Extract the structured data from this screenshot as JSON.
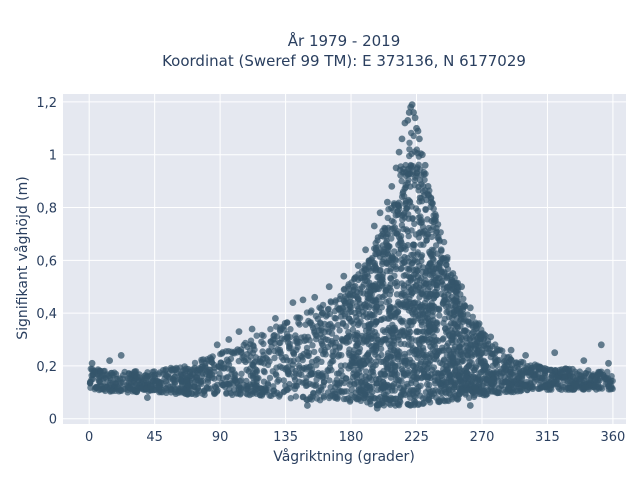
{
  "chart_data": {
    "type": "scatter",
    "title": "År 1979 - 2019",
    "subtitle": "Koordinat (Sweref 99 TM): E 373136, N 6177029",
    "xlabel": "Vågriktning (grader)",
    "ylabel": "Signifikant våghöjd (m)",
    "xlim": [
      -18,
      369
    ],
    "ylim": [
      -0.02,
      1.23
    ],
    "x_ticks": [
      0,
      45,
      90,
      135,
      180,
      225,
      270,
      315,
      360
    ],
    "x_tick_labels": [
      "0",
      "45",
      "90",
      "135",
      "180",
      "225",
      "270",
      "315",
      "360"
    ],
    "y_ticks": [
      0,
      0.2,
      0.4,
      0.6,
      0.8,
      1.0,
      1.2
    ],
    "y_tick_labels": [
      "0",
      "0,2",
      "0,4",
      "0,6",
      "0,8",
      "1",
      "1,2"
    ],
    "grid": true,
    "legend": "none",
    "background": "#e5e8f0",
    "marker_color": "#34566b",
    "series": [
      {
        "name": "",
        "envelope": {
          "x": [
            0,
            20,
            45,
            70,
            90,
            110,
            130,
            150,
            170,
            185,
            195,
            205,
            212,
            218,
            222,
            226,
            232,
            240,
            250,
            262,
            275,
            290,
            310,
            330,
            350,
            360
          ],
          "upper": [
            0.19,
            0.18,
            0.18,
            0.21,
            0.25,
            0.3,
            0.36,
            0.41,
            0.46,
            0.55,
            0.64,
            0.78,
            0.92,
            1.02,
            1.1,
            1.05,
            0.92,
            0.74,
            0.56,
            0.4,
            0.3,
            0.23,
            0.2,
            0.19,
            0.18,
            0.18
          ],
          "lower": [
            0.11,
            0.1,
            0.1,
            0.09,
            0.09,
            0.09,
            0.08,
            0.07,
            0.07,
            0.06,
            0.05,
            0.05,
            0.05,
            0.05,
            0.05,
            0.05,
            0.06,
            0.06,
            0.07,
            0.08,
            0.09,
            0.1,
            0.11,
            0.11,
            0.11,
            0.11
          ]
        },
        "points": [
          [
            22,
            0.24
          ],
          [
            103,
            0.33
          ],
          [
            128,
            0.38
          ],
          [
            155,
            0.46
          ],
          [
            175,
            0.54
          ],
          [
            185,
            0.58
          ],
          [
            190,
            0.64
          ],
          [
            196,
            0.73
          ],
          [
            200,
            0.78
          ],
          [
            205,
            0.82
          ],
          [
            208,
            0.88
          ],
          [
            211,
            0.95
          ],
          [
            213,
            1.01
          ],
          [
            215,
            1.06
          ],
          [
            217,
            1.12
          ],
          [
            219,
            1.13
          ],
          [
            220,
            1.16
          ],
          [
            221,
            1.18
          ],
          [
            222,
            1.19
          ],
          [
            223,
            1.16
          ],
          [
            224,
            1.14
          ],
          [
            225,
            1.1
          ],
          [
            226,
            1.09
          ],
          [
            227,
            1.06
          ],
          [
            229,
            1.0
          ],
          [
            231,
            0.96
          ],
          [
            233,
            0.88
          ],
          [
            235,
            0.82
          ],
          [
            238,
            0.75
          ],
          [
            242,
            0.64
          ],
          [
            245,
            0.6
          ],
          [
            250,
            0.55
          ],
          [
            256,
            0.5
          ],
          [
            262,
            0.42
          ],
          [
            268,
            0.36
          ],
          [
            276,
            0.31
          ],
          [
            290,
            0.26
          ],
          [
            300,
            0.24
          ],
          [
            320,
            0.25
          ],
          [
            340,
            0.22
          ],
          [
            352,
            0.28
          ],
          [
            357,
            0.21
          ],
          [
            2,
            0.21
          ],
          [
            14,
            0.22
          ],
          [
            88,
            0.28
          ],
          [
            96,
            0.3
          ],
          [
            112,
            0.34
          ],
          [
            140,
            0.44
          ],
          [
            147,
            0.45
          ],
          [
            165,
            0.5
          ],
          [
            262,
            0.05
          ],
          [
            198,
            0.04
          ],
          [
            230,
            0.06
          ],
          [
            40,
            0.08
          ],
          [
            150,
            0.05
          ]
        ]
      }
    ]
  }
}
